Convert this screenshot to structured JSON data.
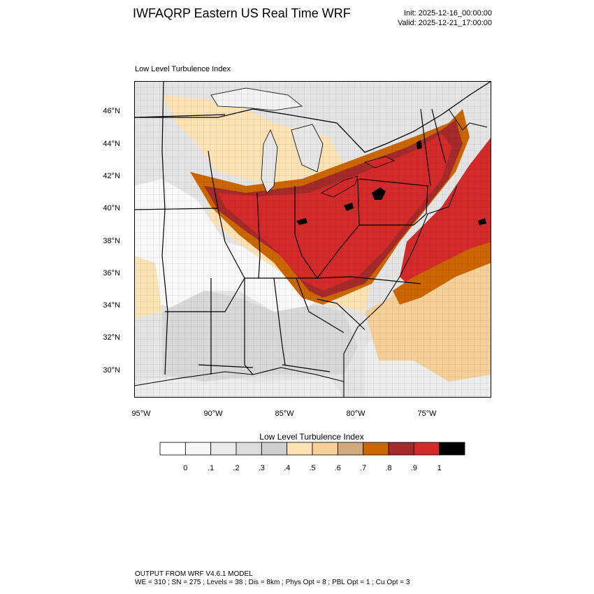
{
  "header": {
    "title": "IWFAQRP Eastern US Real Time WRF",
    "init": "Init: 2025-12-16_00:00:00",
    "valid": "Valid: 2025-12-21_17:00:00"
  },
  "map": {
    "subtitle": "Low Level Turbulence Index",
    "lat_labels": [
      "46°N",
      "44°N",
      "42°N",
      "40°N",
      "38°N",
      "36°N",
      "34°N",
      "32°N",
      "30°N"
    ],
    "lon_labels": [
      "95°W",
      "90°W",
      "85°W",
      "80°W",
      "75°W"
    ],
    "field": "Low Level Turbulence Index",
    "max_region": "Ohio Valley to Mid-Atlantic and Northeast"
  },
  "colorbar": {
    "title": "Low Level Turbulence Index",
    "tick_labels": [
      "0",
      ".1",
      ".2",
      ".3",
      ".4",
      ".5",
      ".6",
      ".7",
      ".8",
      ".9",
      "1"
    ],
    "colors": [
      "#ffffff",
      "#f6f6f6",
      "#eaeaea",
      "#dcdcdc",
      "#cfcfcf",
      "#fde3b4",
      "#f5cf98",
      "#d2a97c",
      "#cc6600",
      "#a52a2a",
      "#d42a2a",
      "#000000"
    ]
  },
  "footer": {
    "line1": "OUTPUT FROM WRF V4.6.1 MODEL",
    "line2": "WE = 310 ; SN = 275 ; Levels = 38 ; Dis = 8km ; Phys Opt = 8 ; PBL Opt = 1 ; Cu Opt = 3"
  }
}
